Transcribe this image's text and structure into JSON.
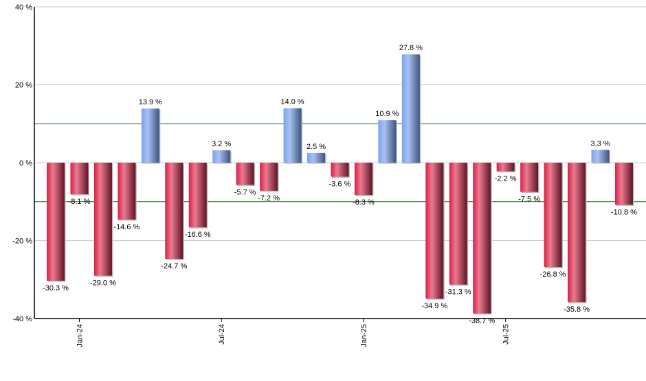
{
  "chart_data": {
    "type": "bar",
    "title": "",
    "xlabel": "",
    "ylabel": "",
    "ylim": [
      -40,
      40
    ],
    "yticks": [
      40,
      20,
      0,
      -20,
      -40
    ],
    "ytick_labels": [
      "40 %",
      "20 %",
      "0 %",
      "-20 %",
      "-40 %"
    ],
    "reference_lines": [
      10,
      -10
    ],
    "grid": true,
    "categories": [
      "Dec-23",
      "Jan-24",
      "Feb-24",
      "Mar-24",
      "Apr-24",
      "May-24",
      "Jun-24",
      "Jul-24",
      "Aug-24",
      "Sep-24",
      "Oct-24",
      "Nov-24",
      "Dec-24",
      "Jan-25",
      "Feb-25",
      "Mar-25",
      "Apr-25",
      "May-25",
      "Jun-25",
      "Jul-25",
      "Aug-25",
      "Sep-25",
      "Oct-25",
      "Nov-25",
      "Dec-25"
    ],
    "xtick_labels": [
      {
        "index": 1,
        "label": "Jan-24"
      },
      {
        "index": 7,
        "label": "Jul-24"
      },
      {
        "index": 13,
        "label": "Jan-25"
      },
      {
        "index": 19,
        "label": "Jul-25"
      }
    ],
    "values": [
      -30.3,
      -8.1,
      -29.0,
      -14.6,
      13.9,
      -24.7,
      -16.6,
      3.2,
      -5.7,
      -7.2,
      14.0,
      2.5,
      -3.6,
      -8.3,
      10.9,
      27.8,
      -34.9,
      -31.3,
      -38.7,
      -2.2,
      -7.5,
      -26.8,
      -35.8,
      3.3,
      -10.8
    ],
    "data_labels": [
      "-30.3 %",
      "-8.1 %",
      "-29.0 %",
      "-14.6 %",
      "13.9 %",
      "-24.7 %",
      "-16.6 %",
      "3.2 %",
      "-5.7 %",
      "-7.2 %",
      "14.0 %",
      "2.5 %",
      "-3.6 %",
      "-8.3 %",
      "10.9 %",
      "27.8 %",
      "-34.9 %",
      "-31.3 %",
      "-38.7 %",
      "-2.2 %",
      "-7.5 %",
      "-26.8 %",
      "-35.8 %",
      "3.3 %",
      "-10.8 %"
    ],
    "colors": {
      "positive": "#6f8fd0",
      "negative": "#c8264a",
      "reference_line": "#1a6b1a",
      "grid": "#c8c8c8"
    }
  }
}
